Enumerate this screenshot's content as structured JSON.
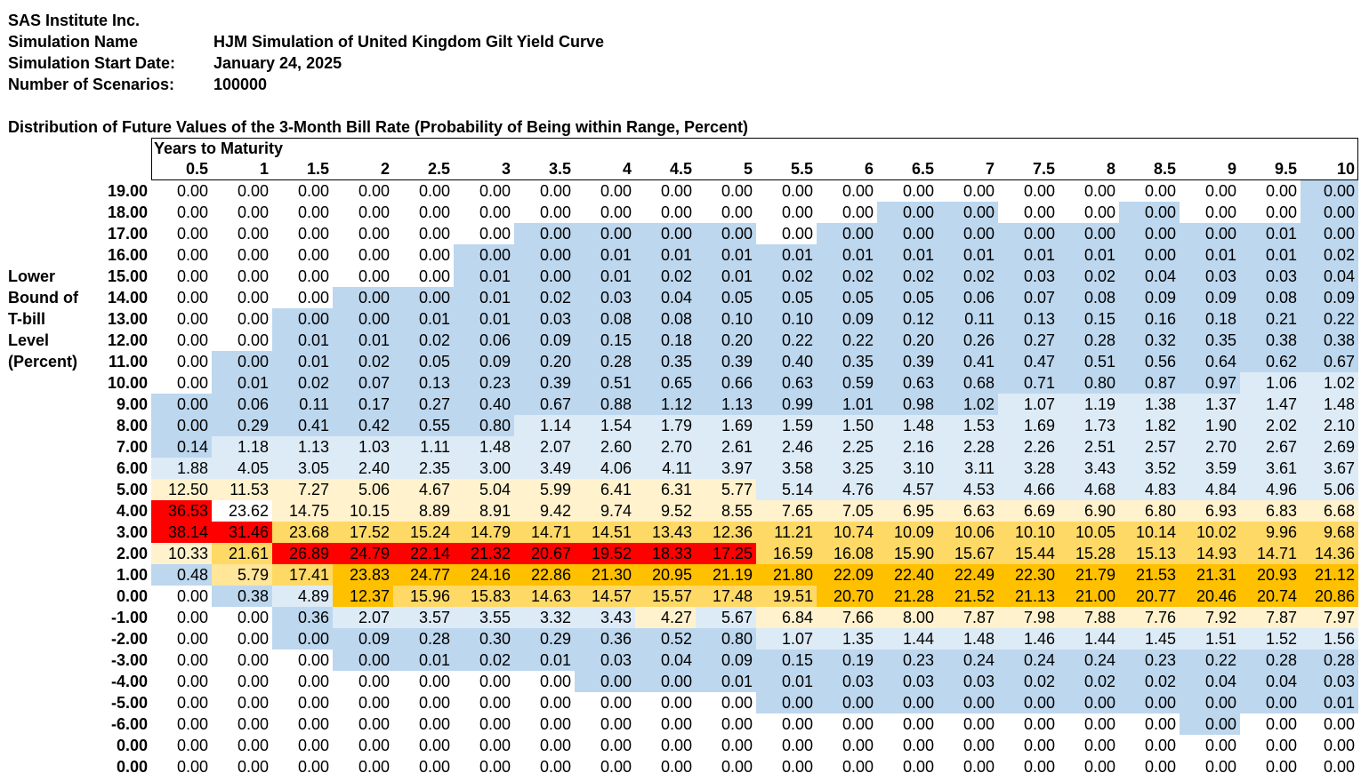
{
  "header": {
    "company": "SAS Institute Inc.",
    "sim_name_label": "Simulation Name",
    "sim_name_value": "HJM Simulation of United Kingdom Gilt Yield Curve",
    "start_date_label": "Simulation Start Date:",
    "start_date_value": "January 24, 2025",
    "scenarios_label": "Number of Scenarios:",
    "scenarios_value": "100000"
  },
  "table": {
    "title": "Distribution of Future Values of the 3-Month Bill Rate (Probability of Being within Range, Percent)",
    "column_group_label": "Years to Maturity",
    "row_axis_label": [
      "Lower",
      "Bound of",
      "T-bill",
      "Level",
      "(Percent)"
    ],
    "columns": [
      "0.5",
      "1",
      "1.5",
      "2",
      "2.5",
      "3",
      "3.5",
      "4",
      "4.5",
      "5",
      "5.5",
      "6",
      "6.5",
      "7",
      "7.5",
      "8",
      "8.5",
      "9",
      "9.5",
      "10"
    ],
    "rows": [
      {
        "label": "19.00",
        "values": [
          "0.00",
          "0.00",
          "0.00",
          "0.00",
          "0.00",
          "0.00",
          "0.00",
          "0.00",
          "0.00",
          "0.00",
          "0.00",
          "0.00",
          "0.00",
          "0.00",
          "0.00",
          "0.00",
          "0.00",
          "0.00",
          "0.00",
          "0.00"
        ]
      },
      {
        "label": "18.00",
        "values": [
          "0.00",
          "0.00",
          "0.00",
          "0.00",
          "0.00",
          "0.00",
          "0.00",
          "0.00",
          "0.00",
          "0.00",
          "0.00",
          "0.00",
          "0.00",
          "0.00",
          "0.00",
          "0.00",
          "0.00",
          "0.00",
          "0.00",
          "0.00"
        ]
      },
      {
        "label": "17.00",
        "values": [
          "0.00",
          "0.00",
          "0.00",
          "0.00",
          "0.00",
          "0.00",
          "0.00",
          "0.00",
          "0.00",
          "0.00",
          "0.00",
          "0.00",
          "0.00",
          "0.00",
          "0.00",
          "0.00",
          "0.00",
          "0.00",
          "0.01",
          "0.00"
        ]
      },
      {
        "label": "16.00",
        "values": [
          "0.00",
          "0.00",
          "0.00",
          "0.00",
          "0.00",
          "0.00",
          "0.00",
          "0.01",
          "0.01",
          "0.01",
          "0.01",
          "0.01",
          "0.01",
          "0.01",
          "0.01",
          "0.01",
          "0.00",
          "0.01",
          "0.01",
          "0.02"
        ]
      },
      {
        "label": "15.00",
        "values": [
          "0.00",
          "0.00",
          "0.00",
          "0.00",
          "0.00",
          "0.01",
          "0.00",
          "0.01",
          "0.02",
          "0.01",
          "0.02",
          "0.02",
          "0.02",
          "0.02",
          "0.03",
          "0.02",
          "0.04",
          "0.03",
          "0.03",
          "0.04"
        ]
      },
      {
        "label": "14.00",
        "values": [
          "0.00",
          "0.00",
          "0.00",
          "0.00",
          "0.00",
          "0.01",
          "0.02",
          "0.03",
          "0.04",
          "0.05",
          "0.05",
          "0.05",
          "0.05",
          "0.06",
          "0.07",
          "0.08",
          "0.09",
          "0.09",
          "0.08",
          "0.09"
        ]
      },
      {
        "label": "13.00",
        "values": [
          "0.00",
          "0.00",
          "0.00",
          "0.00",
          "0.01",
          "0.01",
          "0.03",
          "0.08",
          "0.08",
          "0.10",
          "0.10",
          "0.09",
          "0.12",
          "0.11",
          "0.13",
          "0.15",
          "0.16",
          "0.18",
          "0.21",
          "0.22"
        ]
      },
      {
        "label": "12.00",
        "values": [
          "0.00",
          "0.00",
          "0.01",
          "0.01",
          "0.02",
          "0.06",
          "0.09",
          "0.15",
          "0.18",
          "0.20",
          "0.22",
          "0.22",
          "0.20",
          "0.26",
          "0.27",
          "0.28",
          "0.32",
          "0.35",
          "0.38",
          "0.38"
        ]
      },
      {
        "label": "11.00",
        "values": [
          "0.00",
          "0.00",
          "0.01",
          "0.02",
          "0.05",
          "0.09",
          "0.20",
          "0.28",
          "0.35",
          "0.39",
          "0.40",
          "0.35",
          "0.39",
          "0.41",
          "0.47",
          "0.51",
          "0.56",
          "0.64",
          "0.62",
          "0.67"
        ]
      },
      {
        "label": "10.00",
        "values": [
          "0.00",
          "0.01",
          "0.02",
          "0.07",
          "0.13",
          "0.23",
          "0.39",
          "0.51",
          "0.65",
          "0.66",
          "0.63",
          "0.59",
          "0.63",
          "0.68",
          "0.71",
          "0.80",
          "0.87",
          "0.97",
          "1.06",
          "1.02"
        ]
      },
      {
        "label": "9.00",
        "values": [
          "0.00",
          "0.06",
          "0.11",
          "0.17",
          "0.27",
          "0.40",
          "0.67",
          "0.88",
          "1.12",
          "1.13",
          "0.99",
          "1.01",
          "0.98",
          "1.02",
          "1.07",
          "1.19",
          "1.38",
          "1.37",
          "1.47",
          "1.48"
        ]
      },
      {
        "label": "8.00",
        "values": [
          "0.00",
          "0.29",
          "0.41",
          "0.42",
          "0.55",
          "0.80",
          "1.14",
          "1.54",
          "1.79",
          "1.69",
          "1.59",
          "1.50",
          "1.48",
          "1.53",
          "1.69",
          "1.73",
          "1.82",
          "1.90",
          "2.02",
          "2.10"
        ]
      },
      {
        "label": "7.00",
        "values": [
          "0.14",
          "1.18",
          "1.13",
          "1.03",
          "1.11",
          "1.48",
          "2.07",
          "2.60",
          "2.70",
          "2.61",
          "2.46",
          "2.25",
          "2.16",
          "2.28",
          "2.26",
          "2.51",
          "2.57",
          "2.70",
          "2.67",
          "2.69"
        ]
      },
      {
        "label": "6.00",
        "values": [
          "1.88",
          "4.05",
          "3.05",
          "2.40",
          "2.35",
          "3.00",
          "3.49",
          "4.06",
          "4.11",
          "3.97",
          "3.58",
          "3.25",
          "3.10",
          "3.11",
          "3.28",
          "3.43",
          "3.52",
          "3.59",
          "3.61",
          "3.67"
        ]
      },
      {
        "label": "5.00",
        "values": [
          "12.50",
          "11.53",
          "7.27",
          "5.06",
          "4.67",
          "5.04",
          "5.99",
          "6.41",
          "6.31",
          "5.77",
          "5.14",
          "4.76",
          "4.57",
          "4.53",
          "4.66",
          "4.68",
          "4.83",
          "4.84",
          "4.96",
          "5.06"
        ]
      },
      {
        "label": "4.00",
        "values": [
          "36.53",
          "23.62",
          "14.75",
          "10.15",
          "8.89",
          "8.91",
          "9.42",
          "9.74",
          "9.52",
          "8.55",
          "7.65",
          "7.05",
          "6.95",
          "6.63",
          "6.69",
          "6.90",
          "6.80",
          "6.93",
          "6.83",
          "6.68"
        ]
      },
      {
        "label": "3.00",
        "values": [
          "38.14",
          "31.46",
          "23.68",
          "17.52",
          "15.24",
          "14.79",
          "14.71",
          "14.51",
          "13.43",
          "12.36",
          "11.21",
          "10.74",
          "10.09",
          "10.06",
          "10.10",
          "10.05",
          "10.14",
          "10.02",
          "9.96",
          "9.68"
        ]
      },
      {
        "label": "2.00",
        "values": [
          "10.33",
          "21.61",
          "26.89",
          "24.79",
          "22.14",
          "21.32",
          "20.67",
          "19.52",
          "18.33",
          "17.25",
          "16.59",
          "16.08",
          "15.90",
          "15.67",
          "15.44",
          "15.28",
          "15.13",
          "14.93",
          "14.71",
          "14.36"
        ]
      },
      {
        "label": "1.00",
        "values": [
          "0.48",
          "5.79",
          "17.41",
          "23.83",
          "24.77",
          "24.16",
          "22.86",
          "21.30",
          "20.95",
          "21.19",
          "21.80",
          "22.09",
          "22.40",
          "22.49",
          "22.30",
          "21.79",
          "21.53",
          "21.31",
          "20.93",
          "21.12"
        ]
      },
      {
        "label": "0.00",
        "values": [
          "0.00",
          "0.38",
          "4.89",
          "12.37",
          "15.96",
          "15.83",
          "14.63",
          "14.57",
          "15.57",
          "17.48",
          "19.51",
          "20.70",
          "21.28",
          "21.52",
          "21.13",
          "21.00",
          "20.77",
          "20.46",
          "20.74",
          "20.86"
        ]
      },
      {
        "label": "-1.00",
        "values": [
          "0.00",
          "0.00",
          "0.36",
          "2.07",
          "3.57",
          "3.55",
          "3.32",
          "3.43",
          "4.27",
          "5.67",
          "6.84",
          "7.66",
          "8.00",
          "7.87",
          "7.98",
          "7.88",
          "7.76",
          "7.92",
          "7.87",
          "7.97"
        ]
      },
      {
        "label": "-2.00",
        "values": [
          "0.00",
          "0.00",
          "0.00",
          "0.09",
          "0.28",
          "0.30",
          "0.29",
          "0.36",
          "0.52",
          "0.80",
          "1.07",
          "1.35",
          "1.44",
          "1.48",
          "1.46",
          "1.44",
          "1.45",
          "1.51",
          "1.52",
          "1.56"
        ]
      },
      {
        "label": "-3.00",
        "values": [
          "0.00",
          "0.00",
          "0.00",
          "0.00",
          "0.01",
          "0.02",
          "0.01",
          "0.03",
          "0.04",
          "0.09",
          "0.15",
          "0.19",
          "0.23",
          "0.24",
          "0.24",
          "0.24",
          "0.23",
          "0.22",
          "0.28",
          "0.28"
        ]
      },
      {
        "label": "-4.00",
        "values": [
          "0.00",
          "0.00",
          "0.00",
          "0.00",
          "0.00",
          "0.00",
          "0.00",
          "0.00",
          "0.00",
          "0.01",
          "0.01",
          "0.03",
          "0.03",
          "0.03",
          "0.02",
          "0.02",
          "0.02",
          "0.04",
          "0.04",
          "0.03"
        ]
      },
      {
        "label": "-5.00",
        "values": [
          "0.00",
          "0.00",
          "0.00",
          "0.00",
          "0.00",
          "0.00",
          "0.00",
          "0.00",
          "0.00",
          "0.00",
          "0.00",
          "0.00",
          "0.00",
          "0.00",
          "0.00",
          "0.00",
          "0.00",
          "0.00",
          "0.00",
          "0.01"
        ]
      },
      {
        "label": "-6.00",
        "values": [
          "0.00",
          "0.00",
          "0.00",
          "0.00",
          "0.00",
          "0.00",
          "0.00",
          "0.00",
          "0.00",
          "0.00",
          "0.00",
          "0.00",
          "0.00",
          "0.00",
          "0.00",
          "0.00",
          "0.00",
          "0.00",
          "0.00",
          "0.00"
        ]
      },
      {
        "label": "0.00",
        "values": [
          "0.00",
          "0.00",
          "0.00",
          "0.00",
          "0.00",
          "0.00",
          "0.00",
          "0.00",
          "0.00",
          "0.00",
          "0.00",
          "0.00",
          "0.00",
          "0.00",
          "0.00",
          "0.00",
          "0.00",
          "0.00",
          "0.00",
          "0.00"
        ]
      },
      {
        "label": "0.00",
        "values": [
          "0.00",
          "0.00",
          "0.00",
          "0.00",
          "0.00",
          "0.00",
          "0.00",
          "0.00",
          "0.00",
          "0.00",
          "0.00",
          "0.00",
          "0.00",
          "0.00",
          "0.00",
          "0.00",
          "0.00",
          "0.00",
          "0.00",
          "0.00"
        ]
      }
    ],
    "cell_fill": [
      "wwwwwwwwwwwwwwwwwwwb",
      "wwwwwwwwwwwwbbwwbwwb",
      "wwwwwwbbbbwbbbbbbbbb",
      "wwwwwbbbbbbbbbbbbbbb",
      "wwwwwbbbbbbbbbbbbbbb",
      "wwwbbbbbbbbbbbbbbbbb",
      "wwbbbbbbbbbbbbbbbbbb",
      "wwbbbbbbbbbbbbbbbbbb",
      "wbbbbbbbbbbbbbbbbbbb",
      "wbbbbbbbbbbbbbbbbbll",
      "bbbbbbbbbbbbbbllllll",
      "bbbbbblllllllllllll l",
      "bllllllllllllllllllll",
      "llllllllllllllllllll",
      "yyyyyyyyyylllllllllly",
      "rvyyyyyyyyyyyyyyyyyy",
      "rraaaaaaaaaaaaaaaaaa",
      "yarrrrrrrraaaaaaaaaa",
      "bmaooooooooooooooooo",
      "wbloaaaaaaaooooooooo",
      "wwblllllylyyyyyyyyyy",
      "wwbbbbbbbbllllllllll",
      "wwwbbbbbbbbbbbbbbbbb",
      "wwwwwwwbbbbbbbbbbbbb",
      "wwwwwwwwwwbbbbbbbbbb",
      "wwwwwwwwwwwwwwwwwbww",
      "wwwwwwwwwwwwwwwwwwww",
      "wwwwwwwwwwwwwwwwwwww"
    ],
    "fill_colors": {
      "w": "#ffffff",
      "b": "#bdd7ee",
      "l": "#ddebf7",
      "y": "#fff2cc",
      "m": "#ffe699",
      "a": "#ffd966",
      "o": "#ffc000",
      "r": "#ff0000"
    }
  }
}
